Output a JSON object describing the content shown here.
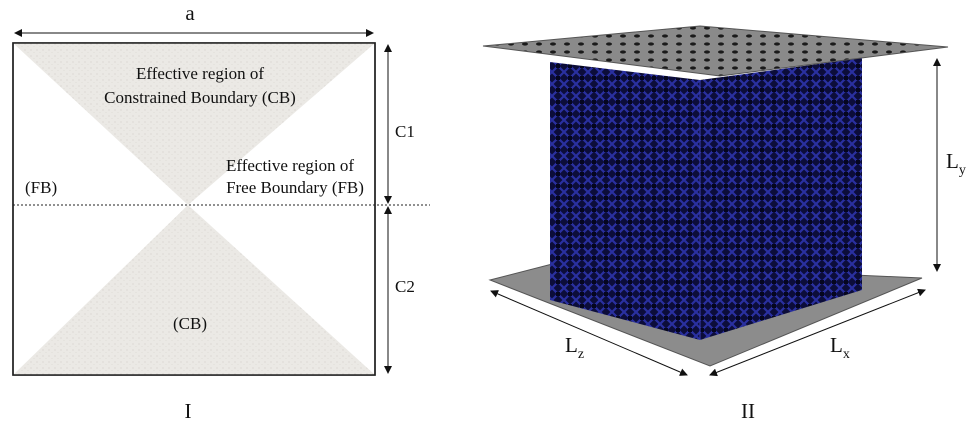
{
  "panel_1": {
    "width_label": "a",
    "cb_top_label": [
      "Effective region of",
      "Constrained Boundary (CB)"
    ],
    "fb_label": [
      "Effective region of",
      "Free Boundary (FB)"
    ],
    "fb_left_label": "(FB)",
    "cb_bottom_label": "(CB)",
    "c1_label": "C1",
    "c2_label": "C2",
    "caption": "I"
  },
  "panel_2": {
    "ly_label": {
      "main": "L",
      "sub": "y"
    },
    "lz_label": {
      "main": "L",
      "sub": "z"
    },
    "lx_label": {
      "main": "L",
      "sub": "x"
    },
    "caption": "II"
  }
}
